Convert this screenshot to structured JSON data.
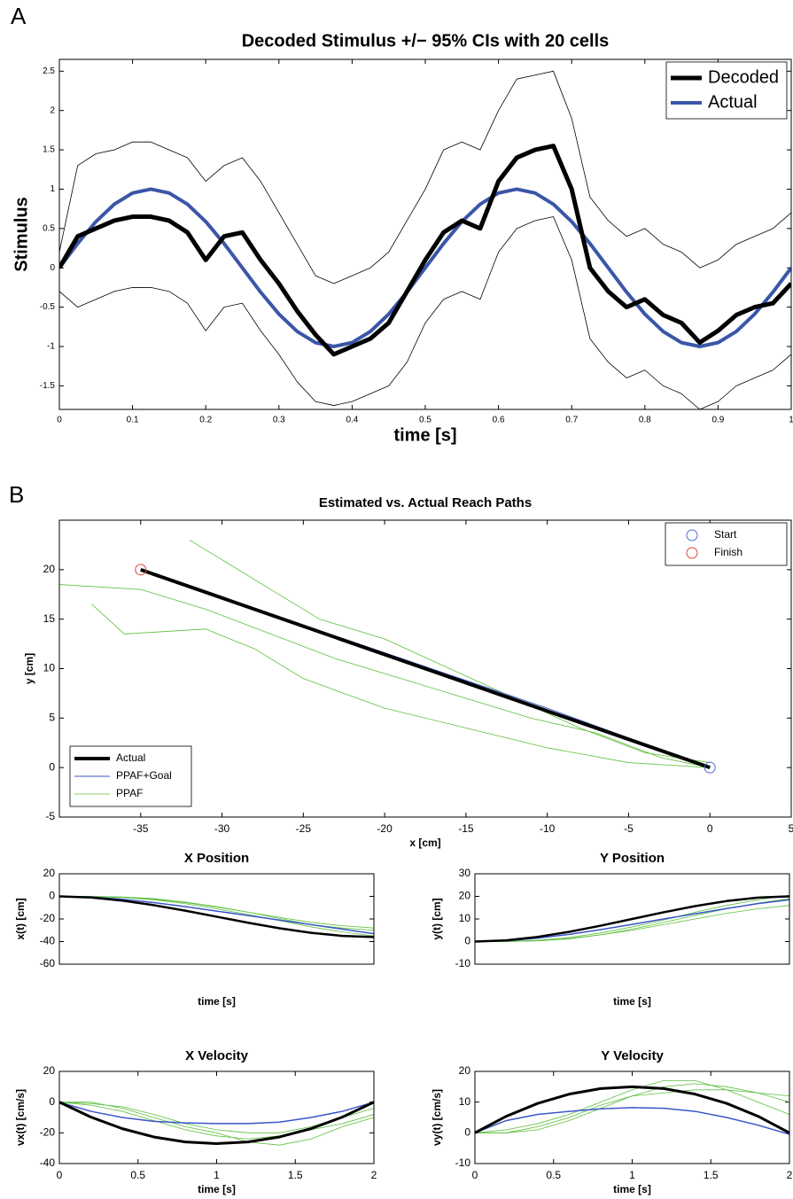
{
  "panel_labels": [
    "A",
    "B"
  ],
  "chart_data": [
    {
      "type": "line",
      "title": "Decoded Stimulus +/− 95% CIs with 20 cells",
      "xlabel": "time [s]",
      "ylabel": "Stimulus",
      "xlim": [
        0,
        1
      ],
      "ylim": [
        -1.8,
        2.65
      ],
      "xticks": [
        0,
        0.1,
        0.2,
        0.3,
        0.4,
        0.5,
        0.6,
        0.7,
        0.8,
        0.9,
        1
      ],
      "yticks": [
        -1.5,
        -1,
        -0.5,
        0,
        0.5,
        1,
        1.5,
        2,
        2.5
      ],
      "legend": "upper right",
      "x": [
        0,
        0.025,
        0.05,
        0.075,
        0.1,
        0.125,
        0.15,
        0.175,
        0.2,
        0.225,
        0.25,
        0.275,
        0.3,
        0.325,
        0.35,
        0.375,
        0.4,
        0.425,
        0.45,
        0.475,
        0.5,
        0.525,
        0.55,
        0.575,
        0.6,
        0.625,
        0.65,
        0.675,
        0.7,
        0.725,
        0.75,
        0.775,
        0.8,
        0.825,
        0.85,
        0.875,
        0.9,
        0.925,
        0.95,
        0.975,
        1
      ],
      "series": [
        {
          "name": "Decoded",
          "color": "#000000",
          "linewidth": 5,
          "values": [
            0,
            0.4,
            0.5,
            0.6,
            0.65,
            0.65,
            0.6,
            0.45,
            0.1,
            0.4,
            0.45,
            0.1,
            -0.2,
            -0.55,
            -0.85,
            -1.1,
            -1.0,
            -0.9,
            -0.7,
            -0.3,
            0.1,
            0.45,
            0.6,
            0.5,
            1.1,
            1.4,
            1.5,
            1.55,
            1.0,
            0.0,
            -0.3,
            -0.5,
            -0.4,
            -0.6,
            -0.7,
            -0.95,
            -0.8,
            -0.6,
            -0.5,
            -0.45,
            -0.2
          ]
        },
        {
          "name": "Actual",
          "color": "#3a56a8",
          "linewidth": 4,
          "values": [
            0,
            0.309,
            0.588,
            0.809,
            0.951,
            1,
            0.951,
            0.809,
            0.588,
            0.309,
            0,
            -0.309,
            -0.588,
            -0.809,
            -0.951,
            -1,
            -0.951,
            -0.809,
            -0.588,
            -0.309,
            0,
            0.309,
            0.588,
            0.809,
            0.951,
            1,
            0.951,
            0.809,
            0.588,
            0.309,
            0,
            -0.309,
            -0.588,
            -0.809,
            -0.951,
            -1,
            -0.951,
            -0.809,
            -0.588,
            -0.309,
            0
          ]
        },
        {
          "color": "#000000",
          "linewidth": 0.8,
          "values": [
            0.2,
            1.3,
            1.45,
            1.5,
            1.6,
            1.6,
            1.5,
            1.4,
            1.1,
            1.3,
            1.4,
            1.1,
            0.7,
            0.3,
            -0.1,
            -0.2,
            -0.1,
            0.0,
            0.2,
            0.6,
            1.0,
            1.5,
            1.6,
            1.5,
            2.0,
            2.4,
            2.45,
            2.5,
            1.9,
            0.9,
            0.6,
            0.4,
            0.5,
            0.3,
            0.2,
            0.0,
            0.1,
            0.3,
            0.4,
            0.5,
            0.7
          ]
        },
        {
          "color": "#000000",
          "linewidth": 0.8,
          "values": [
            -0.3,
            -0.5,
            -0.4,
            -0.3,
            -0.25,
            -0.25,
            -0.3,
            -0.45,
            -0.8,
            -0.5,
            -0.45,
            -0.8,
            -1.1,
            -1.45,
            -1.7,
            -1.75,
            -1.7,
            -1.6,
            -1.5,
            -1.2,
            -0.7,
            -0.4,
            -0.3,
            -0.4,
            0.2,
            0.5,
            0.6,
            0.65,
            0.1,
            -0.9,
            -1.2,
            -1.4,
            -1.3,
            -1.5,
            -1.6,
            -1.8,
            -1.7,
            -1.5,
            -1.4,
            -1.3,
            -1.1
          ]
        }
      ]
    },
    {
      "type": "line",
      "title": "Estimated vs. Actual Reach Paths",
      "xlabel": "x [cm]",
      "ylabel": "y [cm]",
      "xlim": [
        -40,
        5
      ],
      "ylim": [
        -5,
        25
      ],
      "xticks": [
        -35,
        -30,
        -25,
        -20,
        -15,
        -10,
        -5,
        0,
        5
      ],
      "yticks": [
        -5,
        0,
        5,
        10,
        15,
        20
      ],
      "legend": "lower left",
      "series": [
        {
          "name": "Actual",
          "color": "#000000",
          "linewidth": 4,
          "x": [
            0,
            -35
          ],
          "values": [
            0,
            20
          ]
        },
        {
          "name": "PPAF+Goal",
          "color": "#3a56c8",
          "linewidth": 1,
          "x": [
            0,
            -5,
            -10,
            -15,
            -20,
            -25,
            -30,
            -35
          ],
          "values": [
            0,
            3,
            6,
            8.8,
            11.6,
            14.4,
            17.2,
            20
          ]
        },
        {
          "name": "PPAF",
          "color": "#5cbf3c",
          "linewidth": 0.8,
          "x": [
            0,
            -3,
            -7,
            -11,
            -15,
            -19,
            -23,
            -27,
            -31,
            -35,
            -40
          ],
          "values": [
            0,
            1,
            3.5,
            5,
            7,
            9,
            11,
            13.5,
            16,
            18,
            18.5
          ]
        },
        {
          "color": "#5cbf3c",
          "linewidth": 0.8,
          "x": [
            0,
            -4,
            -8,
            -12,
            -16,
            -20,
            -24,
            -27,
            -30,
            -32
          ],
          "values": [
            0.5,
            1.5,
            4,
            7,
            10,
            13,
            15,
            18,
            21,
            23
          ]
        },
        {
          "color": "#5cbf3c",
          "linewidth": 0.8,
          "x": [
            0,
            -5,
            -10,
            -15,
            -20,
            -25,
            -28,
            -31,
            -36,
            -38
          ],
          "values": [
            0,
            0.5,
            2,
            4,
            6,
            9,
            12,
            14,
            13.5,
            16.5
          ]
        }
      ],
      "markers": [
        {
          "name": "Start",
          "color": "#4a6ccf",
          "x": 0,
          "y": 0
        },
        {
          "name": "Finish",
          "color": "#e0453a",
          "x": -35,
          "y": 20
        }
      ],
      "marker_legend": "upper right"
    },
    {
      "type": "line",
      "title": "X Position",
      "xlabel": "time [s]",
      "ylabel": "x(t) [cm]",
      "xlim": [
        0,
        2
      ],
      "ylim": [
        -60,
        20
      ],
      "yticks": [
        -60,
        -40,
        -20,
        0,
        20
      ],
      "x": [
        0,
        0.2,
        0.4,
        0.6,
        0.8,
        1,
        1.2,
        1.4,
        1.6,
        1.8,
        2
      ],
      "series": [
        {
          "color": "#000000",
          "linewidth": 2.5,
          "values": [
            0,
            -1.01,
            -3.74,
            -7.78,
            -12.67,
            -18,
            -23.33,
            -28.22,
            -32.26,
            -34.99,
            -36
          ]
        },
        {
          "color": "#3a56c8",
          "linewidth": 1.5,
          "values": [
            0,
            -0.5,
            -2.5,
            -5.5,
            -9,
            -13,
            -17,
            -21,
            -25,
            -29,
            -33
          ]
        },
        {
          "color": "#5cbf3c",
          "linewidth": 0.8,
          "values": [
            0,
            -0.2,
            -1,
            -3,
            -6.5,
            -11,
            -16,
            -21.5,
            -27,
            -31.5,
            -35
          ]
        },
        {
          "color": "#5cbf3c",
          "linewidth": 0.8,
          "values": [
            0,
            0,
            -0.5,
            -2,
            -5,
            -9,
            -14,
            -19.5,
            -25,
            -28,
            -30
          ]
        },
        {
          "color": "#5cbf3c",
          "linewidth": 0.8,
          "values": [
            0,
            -0.1,
            -0.8,
            -2.5,
            -5.5,
            -9.5,
            -14,
            -18.5,
            -23,
            -26,
            -28
          ]
        }
      ]
    },
    {
      "type": "line",
      "title": "Y Position",
      "xlabel": "time [s]",
      "ylabel": "y(t) [cm]",
      "xlim": [
        0,
        2
      ],
      "ylim": [
        -10,
        30
      ],
      "yticks": [
        -10,
        0,
        10,
        20,
        30
      ],
      "x": [
        0,
        0.2,
        0.4,
        0.6,
        0.8,
        1,
        1.2,
        1.4,
        1.6,
        1.8,
        2
      ],
      "series": [
        {
          "color": "#000000",
          "linewidth": 2.5,
          "values": [
            0,
            0.56,
            2.08,
            4.32,
            7.04,
            10,
            12.96,
            15.68,
            17.92,
            19.44,
            20
          ]
        },
        {
          "color": "#3a56c8",
          "linewidth": 1.5,
          "values": [
            0,
            0.3,
            1.5,
            3.2,
            5.3,
            7.6,
            10,
            12.3,
            14.6,
            16.8,
            18.5
          ]
        },
        {
          "color": "#5cbf3c",
          "linewidth": 0.8,
          "values": [
            0,
            0,
            0.3,
            1.2,
            3,
            5.5,
            8.5,
            11.5,
            14.5,
            17,
            19
          ]
        },
        {
          "color": "#5cbf3c",
          "linewidth": 0.8,
          "values": [
            0,
            0.1,
            0.6,
            1.8,
            3.8,
            6.5,
            9.5,
            13,
            16,
            18.5,
            20.5
          ]
        },
        {
          "color": "#5cbf3c",
          "linewidth": 0.8,
          "values": [
            0,
            0,
            0.4,
            1.4,
            3,
            5,
            7.5,
            10,
            12.5,
            14.5,
            16
          ]
        }
      ]
    },
    {
      "type": "line",
      "title": "X Velocity",
      "xlabel": "time [s]",
      "ylabel": "vx(t) [cm/s]",
      "xlim": [
        0,
        2
      ],
      "ylim": [
        -40,
        20
      ],
      "xticks": [
        0,
        0.5,
        1,
        1.5,
        2
      ],
      "yticks": [
        -40,
        -20,
        0,
        20
      ],
      "x": [
        0,
        0.2,
        0.4,
        0.6,
        0.8,
        1,
        1.2,
        1.4,
        1.6,
        1.8,
        2
      ],
      "series": [
        {
          "color": "#000000",
          "linewidth": 3,
          "values": [
            0,
            -9.72,
            -17.28,
            -22.68,
            -25.92,
            -27,
            -25.92,
            -22.68,
            -17.28,
            -9.72,
            0
          ]
        },
        {
          "color": "#3a56c8",
          "linewidth": 1.5,
          "values": [
            0,
            -6,
            -10,
            -12.5,
            -13.5,
            -14,
            -14,
            -13,
            -10,
            -6,
            0
          ]
        },
        {
          "color": "#5cbf3c",
          "linewidth": 0.8,
          "values": [
            0,
            -2,
            -6,
            -12,
            -18,
            -22,
            -24,
            -22,
            -18,
            -14,
            -8
          ]
        },
        {
          "color": "#5cbf3c",
          "linewidth": 0.8,
          "values": [
            0,
            0,
            -4,
            -10,
            -16,
            -20,
            -26,
            -28,
            -24,
            -16,
            -10
          ]
        },
        {
          "color": "#5cbf3c",
          "linewidth": 0.8,
          "values": [
            0,
            -1,
            -3,
            -8,
            -14,
            -18,
            -20,
            -20,
            -16,
            -10,
            -4
          ]
        }
      ]
    },
    {
      "type": "line",
      "title": "Y Velocity",
      "xlabel": "time [s]",
      "ylabel": "vy(t) [cm/s]",
      "xlim": [
        0,
        2
      ],
      "ylim": [
        -10,
        20
      ],
      "xticks": [
        0,
        0.5,
        1,
        1.5,
        2
      ],
      "yticks": [
        -10,
        0,
        10,
        20
      ],
      "x": [
        0,
        0.2,
        0.4,
        0.6,
        0.8,
        1,
        1.2,
        1.4,
        1.6,
        1.8,
        2
      ],
      "series": [
        {
          "color": "#000000",
          "linewidth": 3,
          "values": [
            0,
            5.4,
            9.6,
            12.6,
            14.4,
            15,
            14.4,
            12.6,
            9.6,
            5.4,
            0
          ]
        },
        {
          "color": "#3a56c8",
          "linewidth": 1.5,
          "values": [
            0,
            4,
            6,
            7,
            7.8,
            8.2,
            8,
            7,
            5,
            2.5,
            -0.5
          ]
        },
        {
          "color": "#5cbf3c",
          "linewidth": 0.8,
          "values": [
            0,
            0,
            1,
            4,
            8,
            12,
            15,
            16,
            15,
            13,
            10
          ]
        },
        {
          "color": "#5cbf3c",
          "linewidth": 0.8,
          "values": [
            0,
            1,
            3,
            6,
            10,
            14,
            17,
            17,
            14,
            10,
            6
          ]
        },
        {
          "color": "#5cbf3c",
          "linewidth": 0.8,
          "values": [
            0,
            0,
            2,
            5,
            9,
            12,
            13,
            14,
            14,
            13,
            12
          ]
        }
      ]
    }
  ]
}
